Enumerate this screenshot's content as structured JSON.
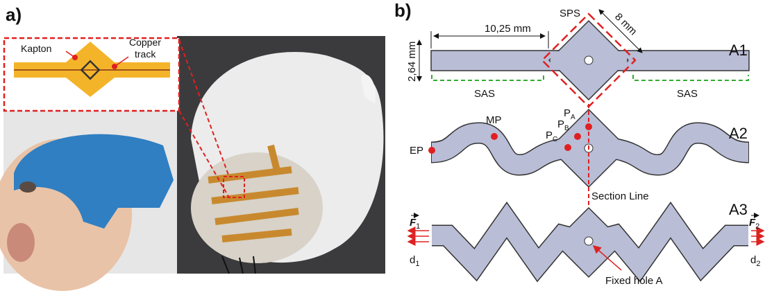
{
  "panel_a": {
    "label": "a)",
    "inset": {
      "kapton": "Kapton",
      "copper_track": [
        "Copper",
        "track"
      ]
    }
  },
  "panel_b": {
    "label": "b)",
    "a1": {
      "name": "A1",
      "sps": "SPS",
      "width_dim": "8 mm",
      "length_dim": "10,25 mm",
      "height_dim": "2,64 mm",
      "sas": [
        "SAS",
        "SAS"
      ]
    },
    "a2": {
      "name": "A2",
      "mp": "MP",
      "ep": "EP",
      "points": [
        {
          "main": "P",
          "sub": "A"
        },
        {
          "main": "P",
          "sub": "B"
        },
        {
          "main": "P",
          "sub": "C"
        }
      ],
      "section_line": "Section Line"
    },
    "a3": {
      "name": "A3",
      "forces": [
        {
          "main": "F",
          "sub": "1"
        },
        {
          "main": "F",
          "sub": "2"
        }
      ],
      "displacements": [
        {
          "main": "d",
          "sub": "1"
        },
        {
          "main": "d",
          "sub": "2"
        }
      ],
      "fixed_hole": "Fixed hole A"
    }
  }
}
